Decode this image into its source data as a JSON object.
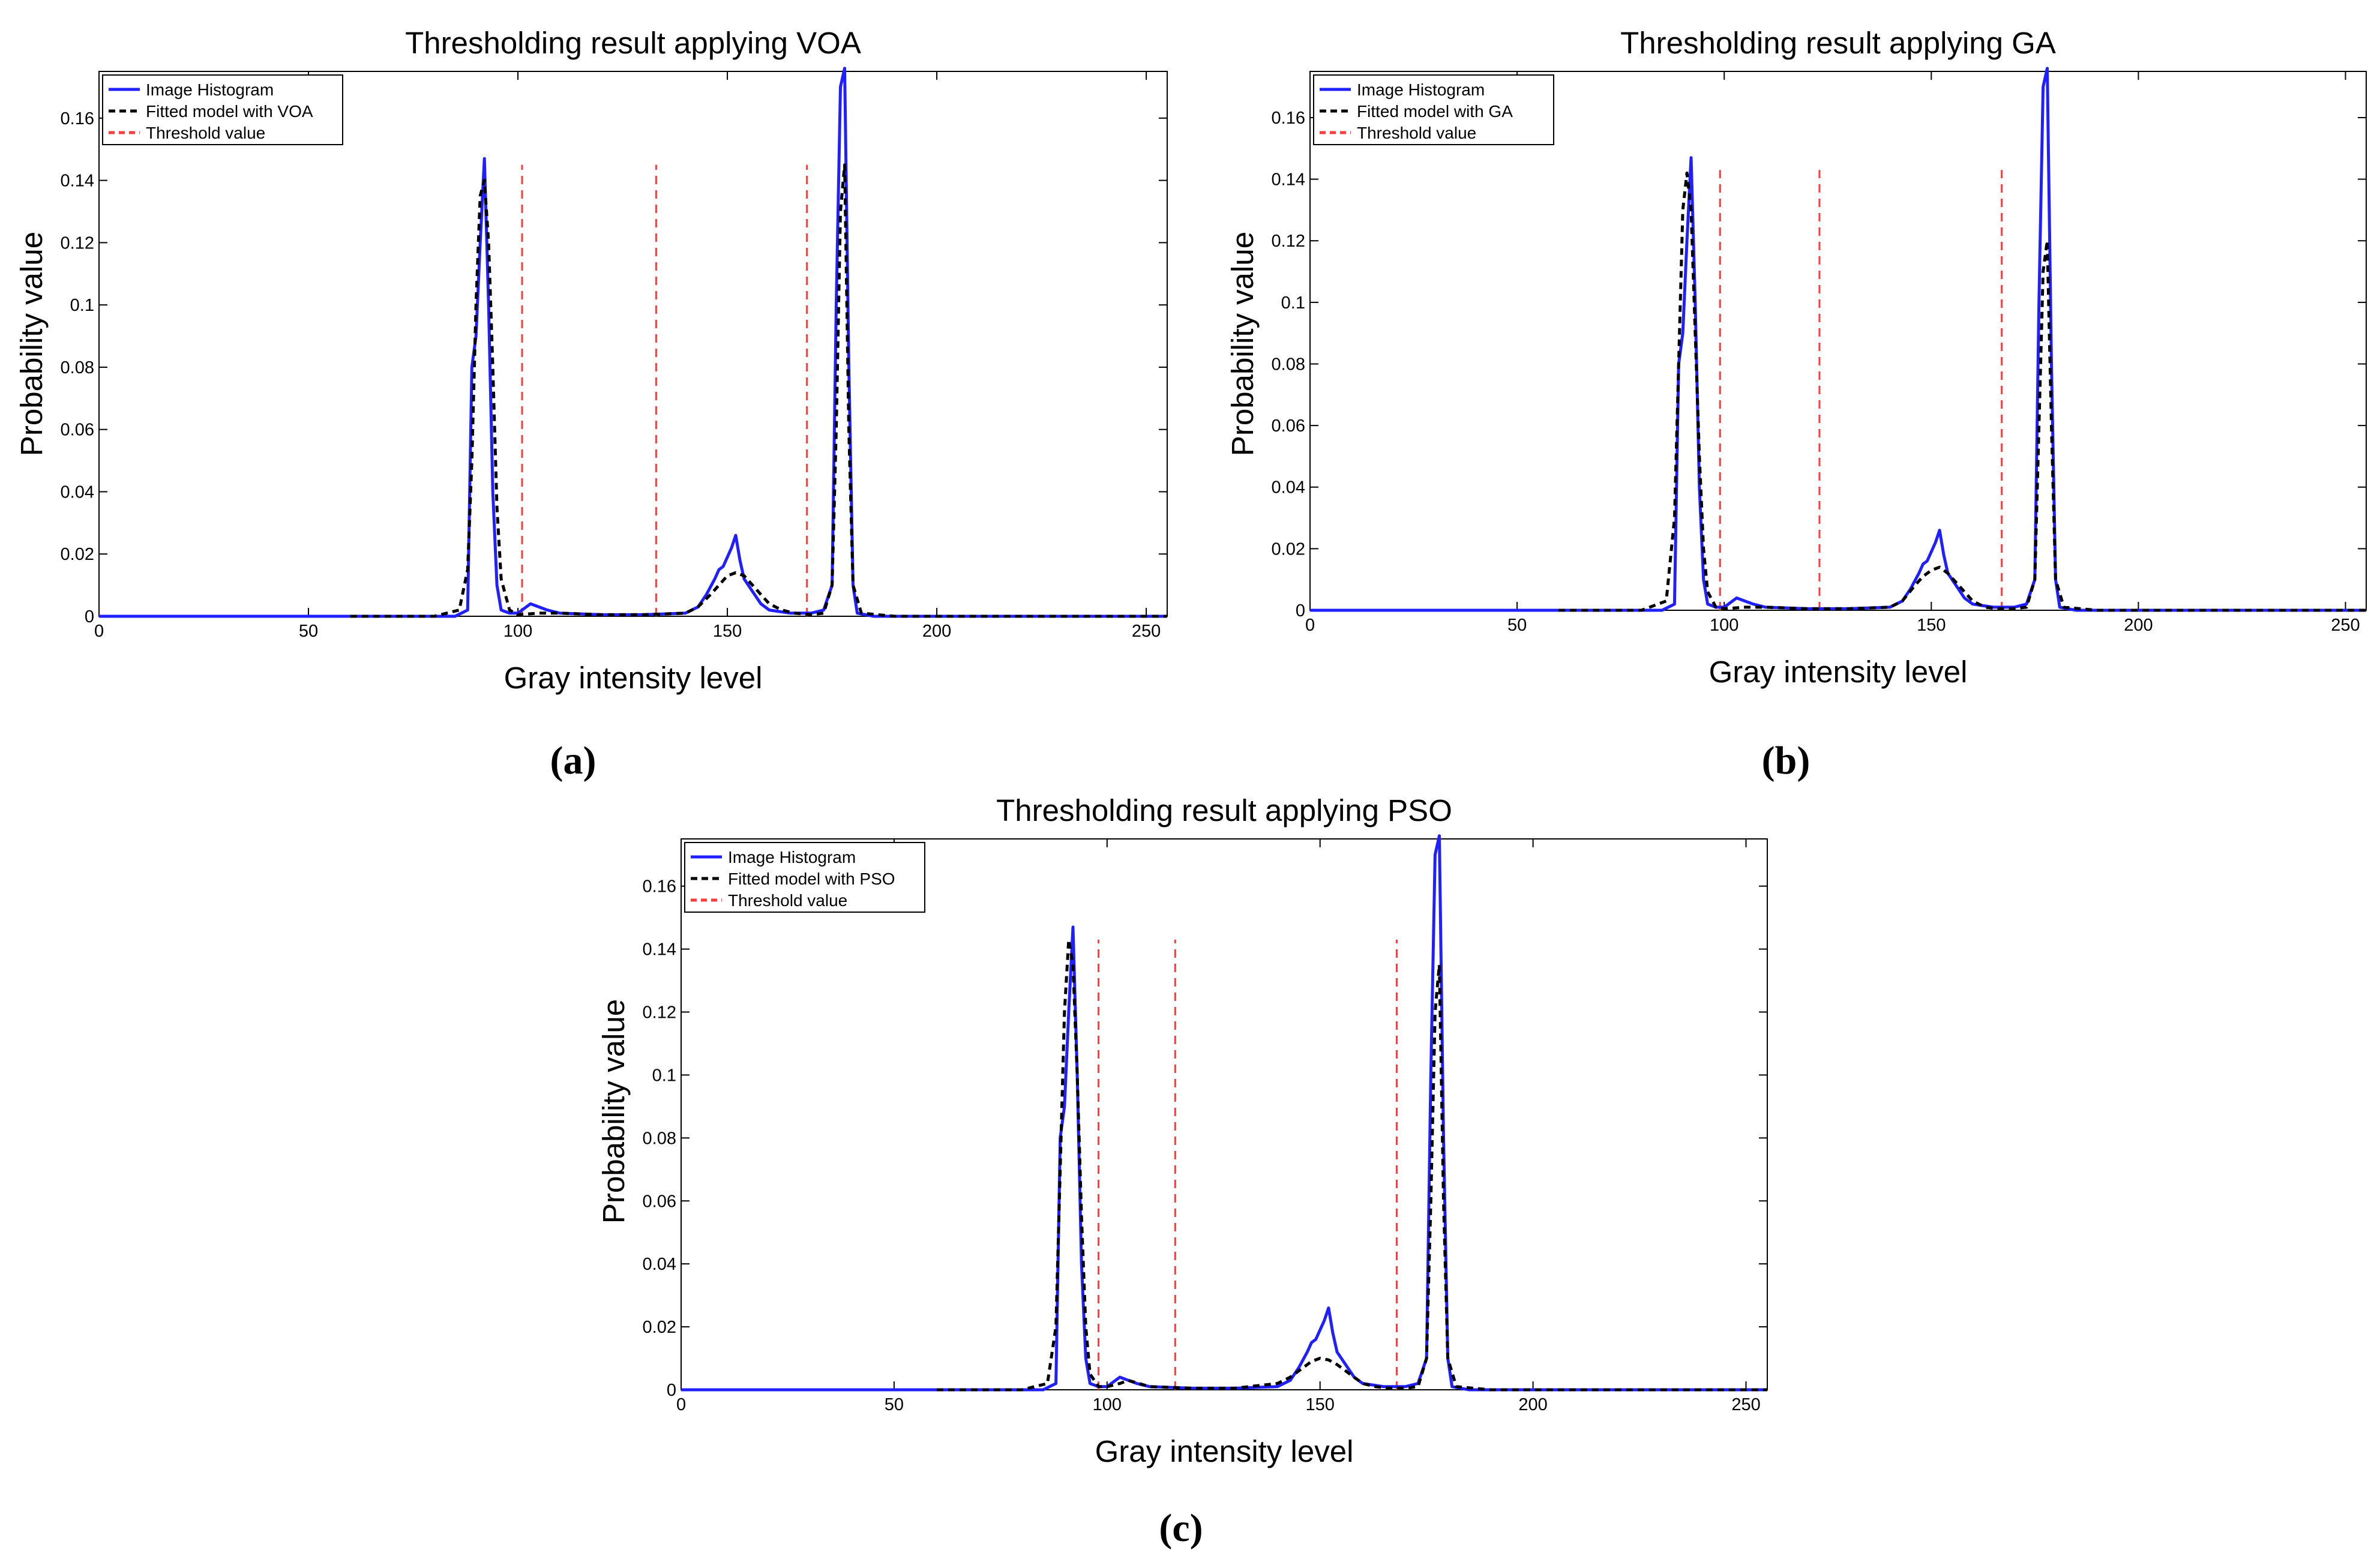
{
  "colors": {
    "histogram": "#1f1fff",
    "fitted": "#000000",
    "threshold": "#ff3b3b",
    "axis": "#000000",
    "background": "#ffffff"
  },
  "chart_data": [
    {
      "type": "line",
      "caption": "(a)",
      "title": "Thresholding result applying VOA",
      "xlabel": "Gray intensity level",
      "ylabel": "Probability value",
      "xlim": [
        0,
        255
      ],
      "ylim": [
        0,
        0.175
      ],
      "xticks": [
        0,
        50,
        100,
        150,
        200,
        250
      ],
      "yticks": [
        0,
        0.02,
        0.04,
        0.06,
        0.08,
        0.1,
        0.12,
        0.14,
        0.16
      ],
      "ytick_labels": [
        "0",
        "0.02",
        "0.04",
        "0.06",
        "0.08",
        "0.1",
        "0.12",
        "0.14",
        "0.16"
      ],
      "legend": [
        "Image Histogram",
        "Fitted model with VOA",
        "Threshold value"
      ],
      "legend_position": "top-left",
      "series": [
        {
          "name": "Image Histogram",
          "x": [
            0,
            85,
            88,
            89,
            90,
            91,
            92,
            93,
            94,
            95,
            96,
            98,
            100,
            103,
            105,
            107,
            110,
            120,
            130,
            140,
            143,
            145,
            147,
            148,
            149,
            150,
            151,
            152,
            153,
            154,
            156,
            158,
            160,
            165,
            170,
            173,
            175,
            176,
            177,
            178,
            179,
            180,
            181,
            185,
            255
          ],
          "y": [
            0,
            0,
            0.002,
            0.08,
            0.09,
            0.12,
            0.147,
            0.1,
            0.04,
            0.01,
            0.002,
            0.001,
            0.001,
            0.004,
            0.003,
            0.002,
            0.001,
            0.0005,
            0.0005,
            0.001,
            0.003,
            0.007,
            0.012,
            0.015,
            0.016,
            0.019,
            0.022,
            0.026,
            0.018,
            0.012,
            0.008,
            0.004,
            0.002,
            0.001,
            0.001,
            0.002,
            0.01,
            0.1,
            0.17,
            0.176,
            0.08,
            0.01,
            0.001,
            0,
            0
          ]
        },
        {
          "name": "Fitted model with VOA",
          "x": [
            60,
            80,
            86,
            88,
            89,
            90,
            91,
            92,
            93,
            94,
            95,
            96,
            98,
            100,
            105,
            110,
            120,
            130,
            140,
            143,
            146,
            148,
            150,
            152,
            154,
            156,
            158,
            160,
            163,
            166,
            170,
            173,
            175,
            176,
            177,
            178,
            179,
            180,
            182,
            190,
            255
          ],
          "y": [
            0,
            0,
            0.002,
            0.015,
            0.05,
            0.1,
            0.135,
            0.14,
            0.12,
            0.08,
            0.035,
            0.012,
            0.002,
            0.0005,
            0.001,
            0.001,
            0.0005,
            0.0005,
            0.001,
            0.003,
            0.007,
            0.01,
            0.013,
            0.014,
            0.013,
            0.01,
            0.007,
            0.004,
            0.002,
            0.001,
            0.0005,
            0.001,
            0.01,
            0.06,
            0.13,
            0.145,
            0.06,
            0.01,
            0.001,
            0,
            0
          ]
        }
      ],
      "thresholds": [
        101,
        133,
        169
      ],
      "threshold_top": 0.145
    },
    {
      "type": "line",
      "caption": "(b)",
      "title": "Thresholding result applying GA",
      "xlabel": "Gray intensity level",
      "ylabel": "Probability value",
      "xlim": [
        0,
        255
      ],
      "ylim": [
        0,
        0.175
      ],
      "xticks": [
        0,
        50,
        100,
        150,
        200,
        250
      ],
      "yticks": [
        0,
        0.02,
        0.04,
        0.06,
        0.08,
        0.1,
        0.12,
        0.14,
        0.16
      ],
      "ytick_labels": [
        "0",
        "0.02",
        "0.04",
        "0.06",
        "0.08",
        "0.1",
        "0.12",
        "0.14",
        "0.16"
      ],
      "legend": [
        "Image Histogram",
        "Fitted model with GA",
        "Threshold value"
      ],
      "legend_position": "top-left",
      "series": [
        {
          "name": "Image Histogram",
          "x": [
            0,
            85,
            88,
            89,
            90,
            91,
            92,
            93,
            94,
            95,
            96,
            98,
            100,
            103,
            105,
            107,
            110,
            120,
            130,
            140,
            143,
            145,
            147,
            148,
            149,
            150,
            151,
            152,
            153,
            154,
            156,
            158,
            160,
            165,
            170,
            173,
            175,
            176,
            177,
            178,
            179,
            180,
            181,
            185,
            255
          ],
          "y": [
            0,
            0,
            0.002,
            0.08,
            0.09,
            0.12,
            0.147,
            0.1,
            0.04,
            0.01,
            0.002,
            0.001,
            0.001,
            0.004,
            0.003,
            0.002,
            0.001,
            0.0005,
            0.0005,
            0.001,
            0.003,
            0.007,
            0.012,
            0.015,
            0.016,
            0.019,
            0.022,
            0.026,
            0.018,
            0.012,
            0.008,
            0.004,
            0.002,
            0.001,
            0.001,
            0.002,
            0.01,
            0.1,
            0.17,
            0.176,
            0.08,
            0.01,
            0.001,
            0,
            0
          ]
        },
        {
          "name": "Fitted model with GA",
          "x": [
            60,
            80,
            86,
            88,
            89,
            90,
            91,
            92,
            93,
            94,
            95,
            96,
            98,
            100,
            105,
            110,
            120,
            130,
            140,
            143,
            146,
            148,
            150,
            152,
            154,
            156,
            158,
            160,
            163,
            166,
            170,
            173,
            175,
            176,
            177,
            178,
            179,
            180,
            182,
            190,
            255
          ],
          "y": [
            0,
            0,
            0.003,
            0.03,
            0.08,
            0.13,
            0.142,
            0.13,
            0.09,
            0.05,
            0.02,
            0.006,
            0.001,
            0.0005,
            0.001,
            0.001,
            0.0005,
            0.0005,
            0.001,
            0.003,
            0.008,
            0.011,
            0.013,
            0.014,
            0.012,
            0.009,
            0.006,
            0.003,
            0.001,
            0.0005,
            0.0005,
            0.001,
            0.01,
            0.06,
            0.11,
            0.12,
            0.06,
            0.01,
            0.001,
            0,
            0
          ]
        }
      ],
      "thresholds": [
        99,
        123,
        167
      ],
      "threshold_top": 0.143
    },
    {
      "type": "line",
      "caption": "(c)",
      "title": "Thresholding result applying PSO",
      "xlabel": "Gray intensity level",
      "ylabel": "Probability value",
      "xlim": [
        0,
        255
      ],
      "ylim": [
        0,
        0.175
      ],
      "xticks": [
        0,
        50,
        100,
        150,
        200,
        250
      ],
      "yticks": [
        0,
        0.02,
        0.04,
        0.06,
        0.08,
        0.1,
        0.12,
        0.14,
        0.16
      ],
      "ytick_labels": [
        "0",
        "0.02",
        "0.04",
        "0.06",
        "0.08",
        "0.1",
        "0.12",
        "0.14",
        "0.16"
      ],
      "legend": [
        "Image Histogram",
        "Fitted model with PSO",
        "Threshold value"
      ],
      "legend_position": "top-left",
      "series": [
        {
          "name": "Image Histogram",
          "x": [
            0,
            85,
            88,
            89,
            90,
            91,
            92,
            93,
            94,
            95,
            96,
            98,
            100,
            103,
            105,
            107,
            110,
            120,
            130,
            140,
            143,
            145,
            147,
            148,
            149,
            150,
            151,
            152,
            153,
            154,
            156,
            158,
            160,
            165,
            170,
            173,
            175,
            176,
            177,
            178,
            179,
            180,
            181,
            185,
            255
          ],
          "y": [
            0,
            0,
            0.002,
            0.08,
            0.09,
            0.12,
            0.147,
            0.1,
            0.04,
            0.01,
            0.002,
            0.001,
            0.001,
            0.004,
            0.003,
            0.002,
            0.001,
            0.0005,
            0.0005,
            0.001,
            0.003,
            0.007,
            0.012,
            0.015,
            0.016,
            0.019,
            0.022,
            0.026,
            0.018,
            0.012,
            0.008,
            0.004,
            0.002,
            0.001,
            0.001,
            0.002,
            0.01,
            0.1,
            0.17,
            0.176,
            0.08,
            0.01,
            0.001,
            0,
            0
          ]
        },
        {
          "name": "Fitted model with PSO",
          "x": [
            60,
            80,
            86,
            88,
            89,
            90,
            91,
            92,
            93,
            94,
            95,
            96,
            98,
            100,
            103,
            105,
            110,
            120,
            130,
            140,
            143,
            146,
            148,
            150,
            152,
            154,
            156,
            158,
            160,
            163,
            166,
            170,
            173,
            175,
            176,
            177,
            178,
            179,
            180,
            182,
            190,
            255
          ],
          "y": [
            0,
            0,
            0.002,
            0.02,
            0.07,
            0.12,
            0.143,
            0.135,
            0.1,
            0.055,
            0.02,
            0.005,
            0.001,
            0.001,
            0.002,
            0.003,
            0.001,
            0.0005,
            0.0005,
            0.002,
            0.004,
            0.007,
            0.009,
            0.01,
            0.0095,
            0.008,
            0.006,
            0.004,
            0.002,
            0.001,
            0.0005,
            0.0005,
            0.001,
            0.01,
            0.06,
            0.12,
            0.135,
            0.06,
            0.01,
            0.001,
            0,
            0
          ]
        }
      ],
      "thresholds": [
        98,
        116,
        168
      ],
      "threshold_top": 0.143
    }
  ]
}
